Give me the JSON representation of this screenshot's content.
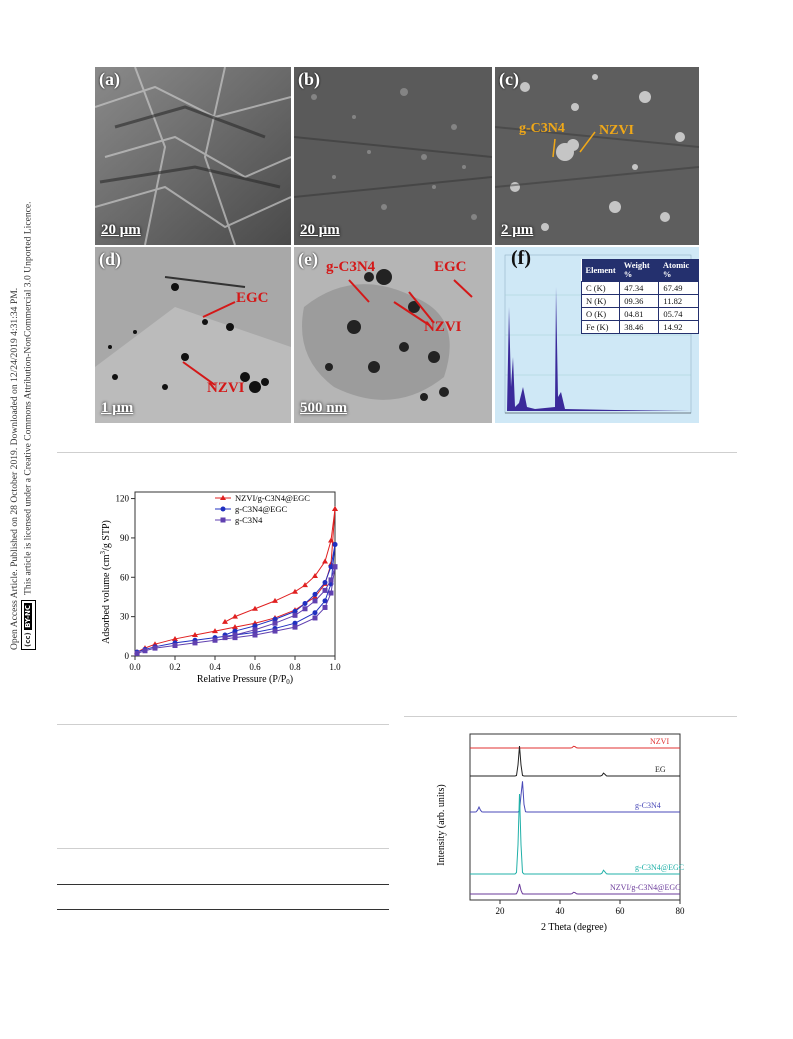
{
  "license": {
    "line1": "Open Access Article. Published on 28 October 2019. Downloaded on 12/24/2019 4:31:34 PM.",
    "line2": "This article is licensed under a Creative Commons Attribution-NonCommercial 3.0 Unported Licence.",
    "badge_cc": "(cc)",
    "badge_by": "BY-NC"
  },
  "figure1": {
    "panels": [
      {
        "letter": "(a)",
        "scale": "20 μm",
        "kind": "SEM"
      },
      {
        "letter": "(b)",
        "scale": "20 μm",
        "kind": "SEM"
      },
      {
        "letter": "(c)",
        "scale": "2 μm",
        "kind": "SEM"
      },
      {
        "letter": "(d)",
        "scale": "1 μm",
        "kind": "TEM"
      },
      {
        "letter": "(e)",
        "scale": "500 nm",
        "kind": "TEM"
      },
      {
        "letter": "(f)",
        "kind": "EDS"
      }
    ],
    "labels": {
      "c_gc3n4": "g-C3N4",
      "c_nzvi": "NZVI",
      "d_egc": "EGC",
      "d_nzvi": "NZVI",
      "e_gc3n4": "g-C3N4",
      "e_egc": "EGC",
      "e_nzvi": "NZVI"
    },
    "eds_table": {
      "headers": [
        "Element",
        "Weight %",
        "Atomic %"
      ],
      "rows": [
        [
          "C (K)",
          "47.34",
          "67.49"
        ],
        [
          "N (K)",
          "09.36",
          "11.82"
        ],
        [
          "O (K)",
          "04.81",
          "05.74"
        ],
        [
          "Fe (K)",
          "38.46",
          "14.92"
        ]
      ]
    }
  },
  "chart_data": [
    {
      "type": "scatter",
      "xlabel": "Relative Pressure (P/P0)",
      "ylabel": "Adsorbed volume (cm3/g STP)",
      "xlim": [
        0.0,
        1.0
      ],
      "ylim": [
        0,
        125
      ],
      "xticks": [
        "0.0",
        "0.2",
        "0.4",
        "0.6",
        "0.8",
        "1.0"
      ],
      "yticks": [
        "0",
        "30",
        "60",
        "90",
        "120"
      ],
      "legend_position": "top-right",
      "series": [
        {
          "name": "NZVI/g-C3N4@EGC",
          "color": "#e02020",
          "marker": "triangle",
          "adsorption": [
            [
              0.01,
              3
            ],
            [
              0.05,
              6
            ],
            [
              0.1,
              9
            ],
            [
              0.2,
              13
            ],
            [
              0.3,
              16
            ],
            [
              0.4,
              19
            ],
            [
              0.5,
              22
            ],
            [
              0.6,
              25
            ],
            [
              0.7,
              29
            ],
            [
              0.8,
              35
            ],
            [
              0.9,
              45
            ],
            [
              0.95,
              55
            ],
            [
              0.98,
              70
            ],
            [
              1.0,
              112
            ]
          ],
          "desorption": [
            [
              1.0,
              112
            ],
            [
              0.98,
              88
            ],
            [
              0.95,
              72
            ],
            [
              0.9,
              61
            ],
            [
              0.85,
              54
            ],
            [
              0.8,
              49
            ],
            [
              0.7,
              42
            ],
            [
              0.6,
              36
            ],
            [
              0.5,
              30
            ],
            [
              0.45,
              26
            ]
          ]
        },
        {
          "name": "g-C3N4@EGC",
          "color": "#2030c0",
          "marker": "circle",
          "adsorption": [
            [
              0.01,
              3
            ],
            [
              0.05,
              5
            ],
            [
              0.1,
              7
            ],
            [
              0.2,
              10
            ],
            [
              0.3,
              12
            ],
            [
              0.4,
              14
            ],
            [
              0.5,
              16
            ],
            [
              0.6,
              18
            ],
            [
              0.7,
              21
            ],
            [
              0.8,
              25
            ],
            [
              0.9,
              33
            ],
            [
              0.95,
              42
            ],
            [
              0.98,
              55
            ],
            [
              1.0,
              85
            ]
          ],
          "desorption": [
            [
              1.0,
              85
            ],
            [
              0.98,
              68
            ],
            [
              0.95,
              56
            ],
            [
              0.9,
              47
            ],
            [
              0.85,
              40
            ],
            [
              0.8,
              34
            ],
            [
              0.7,
              28
            ],
            [
              0.6,
              23
            ],
            [
              0.5,
              19
            ],
            [
              0.45,
              16
            ]
          ]
        },
        {
          "name": "g-C3N4",
          "color": "#6040b0",
          "marker": "square",
          "adsorption": [
            [
              0.01,
              2
            ],
            [
              0.05,
              4
            ],
            [
              0.1,
              6
            ],
            [
              0.2,
              8
            ],
            [
              0.3,
              10
            ],
            [
              0.4,
              12
            ],
            [
              0.5,
              14
            ],
            [
              0.6,
              16
            ],
            [
              0.7,
              19
            ],
            [
              0.8,
              22
            ],
            [
              0.9,
              29
            ],
            [
              0.95,
              37
            ],
            [
              0.98,
              48
            ],
            [
              1.0,
              68
            ]
          ],
          "desorption": [
            [
              1.0,
              68
            ],
            [
              0.98,
              58
            ],
            [
              0.95,
              50
            ],
            [
              0.9,
              42
            ],
            [
              0.85,
              36
            ],
            [
              0.8,
              31
            ],
            [
              0.7,
              25
            ],
            [
              0.6,
              20
            ],
            [
              0.5,
              16
            ],
            [
              0.45,
              14
            ]
          ]
        }
      ]
    },
    {
      "type": "line",
      "xlabel": "2 Theta (degree)",
      "ylabel": "Intensity (arb. units)",
      "xlim": [
        10,
        80
      ],
      "xticks": [
        "20",
        "40",
        "60",
        "80"
      ],
      "series": [
        {
          "name": "NZVI",
          "color": "#e03030",
          "peaks": [
            [
              44.7,
              2
            ]
          ]
        },
        {
          "name": "EG",
          "color": "#222222",
          "peaks": [
            [
              26.5,
              30
            ],
            [
              54.6,
              3
            ]
          ]
        },
        {
          "name": "g-C3N4",
          "color": "#4a4ab8",
          "peaks": [
            [
              13.0,
              5
            ],
            [
              27.4,
              32
            ]
          ]
        },
        {
          "name": "g-C3N4@EGC",
          "color": "#20b0a8",
          "peaks": [
            [
              26.5,
              80
            ],
            [
              54.6,
              4
            ]
          ]
        },
        {
          "name": "NZVI/g-C3N4@EGC",
          "color": "#6a3a9a",
          "peaks": [
            [
              26.5,
              10
            ],
            [
              44.7,
              2
            ]
          ]
        }
      ]
    }
  ]
}
